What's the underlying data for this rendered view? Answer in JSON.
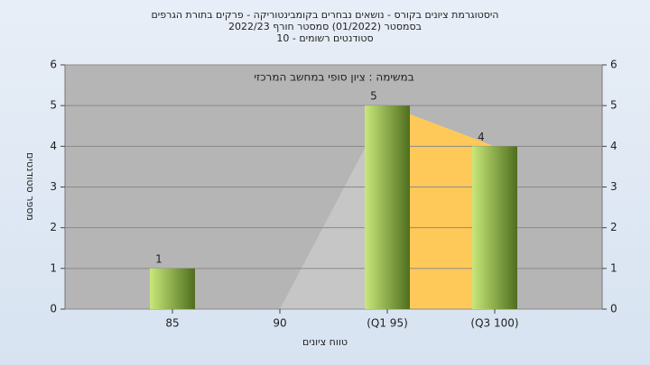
{
  "chart_data": {
    "type": "bar",
    "title": "היסטוגרמת ציונים בקורס - נושאים נבחרים בקומבינטוריקה - פרקים בתורת הגרפים",
    "subtitle": "בסמסטר  (01/2022)  סמסטר חורף 2022/23",
    "subtitle2": "סטודנטים רשומים - 10",
    "annotation": "במשימה : ציון סופי במחשב המרכזי",
    "xlabel": "טווח ציונים",
    "ylabel": "מספר סטודנטים",
    "categories": [
      "85",
      "90",
      "(Q1 95)",
      "(Q3 100)"
    ],
    "values": [
      1,
      0,
      5,
      4
    ],
    "value_labels": [
      "1",
      null,
      "5",
      "4"
    ],
    "bar_colors": [
      "#c8e87a",
      "#4f6e1e"
    ],
    "area_colors": [
      "#c6c6c6",
      "#ffc95a"
    ],
    "ylim": [
      0,
      6
    ],
    "yticks": [
      0,
      1,
      2,
      3,
      4,
      5,
      6
    ],
    "grid": true
  }
}
